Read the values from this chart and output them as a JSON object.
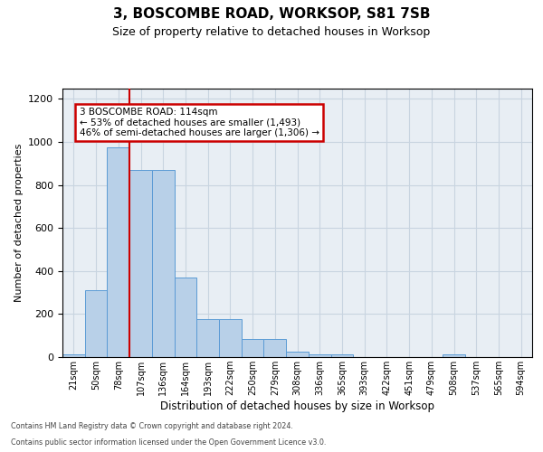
{
  "title": "3, BOSCOMBE ROAD, WORKSOP, S81 7SB",
  "subtitle": "Size of property relative to detached houses in Worksop",
  "xlabel": "Distribution of detached houses by size in Worksop",
  "ylabel": "Number of detached properties",
  "bin_labels": [
    "21sqm",
    "50sqm",
    "78sqm",
    "107sqm",
    "136sqm",
    "164sqm",
    "193sqm",
    "222sqm",
    "250sqm",
    "279sqm",
    "308sqm",
    "336sqm",
    "365sqm",
    "393sqm",
    "422sqm",
    "451sqm",
    "479sqm",
    "508sqm",
    "537sqm",
    "565sqm",
    "594sqm"
  ],
  "bar_heights": [
    13,
    310,
    975,
    870,
    870,
    370,
    175,
    175,
    85,
    85,
    25,
    13,
    13,
    0,
    0,
    0,
    0,
    13,
    0,
    0,
    0
  ],
  "bar_color": "#b8d0e8",
  "bar_edge_color": "#5b9bd5",
  "property_bin_index": 3,
  "annotation_text": "3 BOSCOMBE ROAD: 114sqm\n← 53% of detached houses are smaller (1,493)\n46% of semi-detached houses are larger (1,306) →",
  "annotation_box_facecolor": "#ffffff",
  "annotation_box_edgecolor": "#cc0000",
  "red_line_color": "#cc0000",
  "grid_color": "#c8d4e0",
  "background_color": "#e8eef4",
  "ylim_max": 1250,
  "yticks": [
    0,
    200,
    400,
    600,
    800,
    1000,
    1200
  ],
  "footer_line1": "Contains HM Land Registry data © Crown copyright and database right 2024.",
  "footer_line2": "Contains public sector information licensed under the Open Government Licence v3.0."
}
